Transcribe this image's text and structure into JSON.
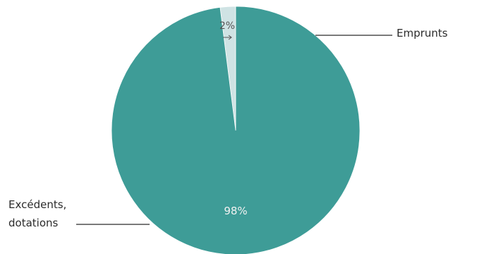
{
  "chart_data": {
    "type": "pie",
    "slices": [
      {
        "label": "Emprunts",
        "value": 2,
        "value_label": "2%",
        "color": "#cfe3e4"
      },
      {
        "label": "Excédents,\ndotations",
        "value": 98,
        "value_label": "98%",
        "color": "#3e9c97"
      }
    ],
    "legend": "none"
  },
  "colors": {
    "text": "#2b2b2b",
    "value_label_on_dark": "#f2f2f2",
    "value_label_on_light": "#555555",
    "leader_line": "#2b2b2b"
  }
}
